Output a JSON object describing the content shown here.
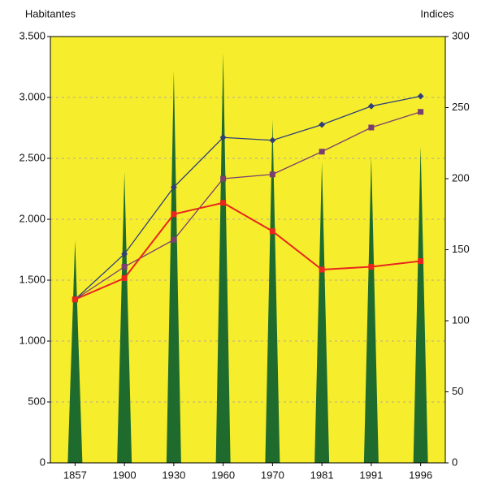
{
  "chart_data": {
    "type": "spike-line",
    "y_label": "Habitantes",
    "y2_label": "Indices",
    "categories": [
      "1857",
      "1900",
      "1930",
      "1960",
      "1970",
      "1981",
      "1991",
      "1996"
    ],
    "values": [
      1830,
      2390,
      3220,
      3370,
      2820,
      2470,
      2520,
      2600
    ],
    "color": "#1f6b2d",
    "series": [
      {
        "color": "#2e3f7a",
        "marker": "diamond",
        "axis": "y2",
        "values": [
          115,
          147,
          194,
          229,
          227,
          238,
          251,
          258
        ]
      },
      {
        "color": "#7a3f6e",
        "marker": "square",
        "axis": "y2",
        "values": [
          115,
          138,
          157,
          200,
          203,
          219,
          236,
          247
        ]
      },
      {
        "color": "#e8261e",
        "marker": "square",
        "axis": "y2",
        "values": [
          115,
          130,
          175,
          183,
          163,
          136,
          138,
          142
        ]
      }
    ],
    "ylim": [
      0,
      3500
    ],
    "yticks": [
      0,
      500,
      {
        "value": 1000,
        "label": "1.000"
      },
      {
        "value": 1500,
        "label": "1.500"
      },
      {
        "value": 2000,
        "label": "2.000"
      },
      {
        "value": 2500,
        "label": "2.500"
      },
      {
        "value": 3000,
        "label": "3.000"
      },
      {
        "value": 3500,
        "label": "3.500"
      }
    ],
    "y2lim": [
      0,
      300
    ],
    "y2ticks": [
      0,
      50,
      100,
      150,
      200,
      250,
      300
    ],
    "grid": true,
    "background": "#f6ee2c"
  }
}
